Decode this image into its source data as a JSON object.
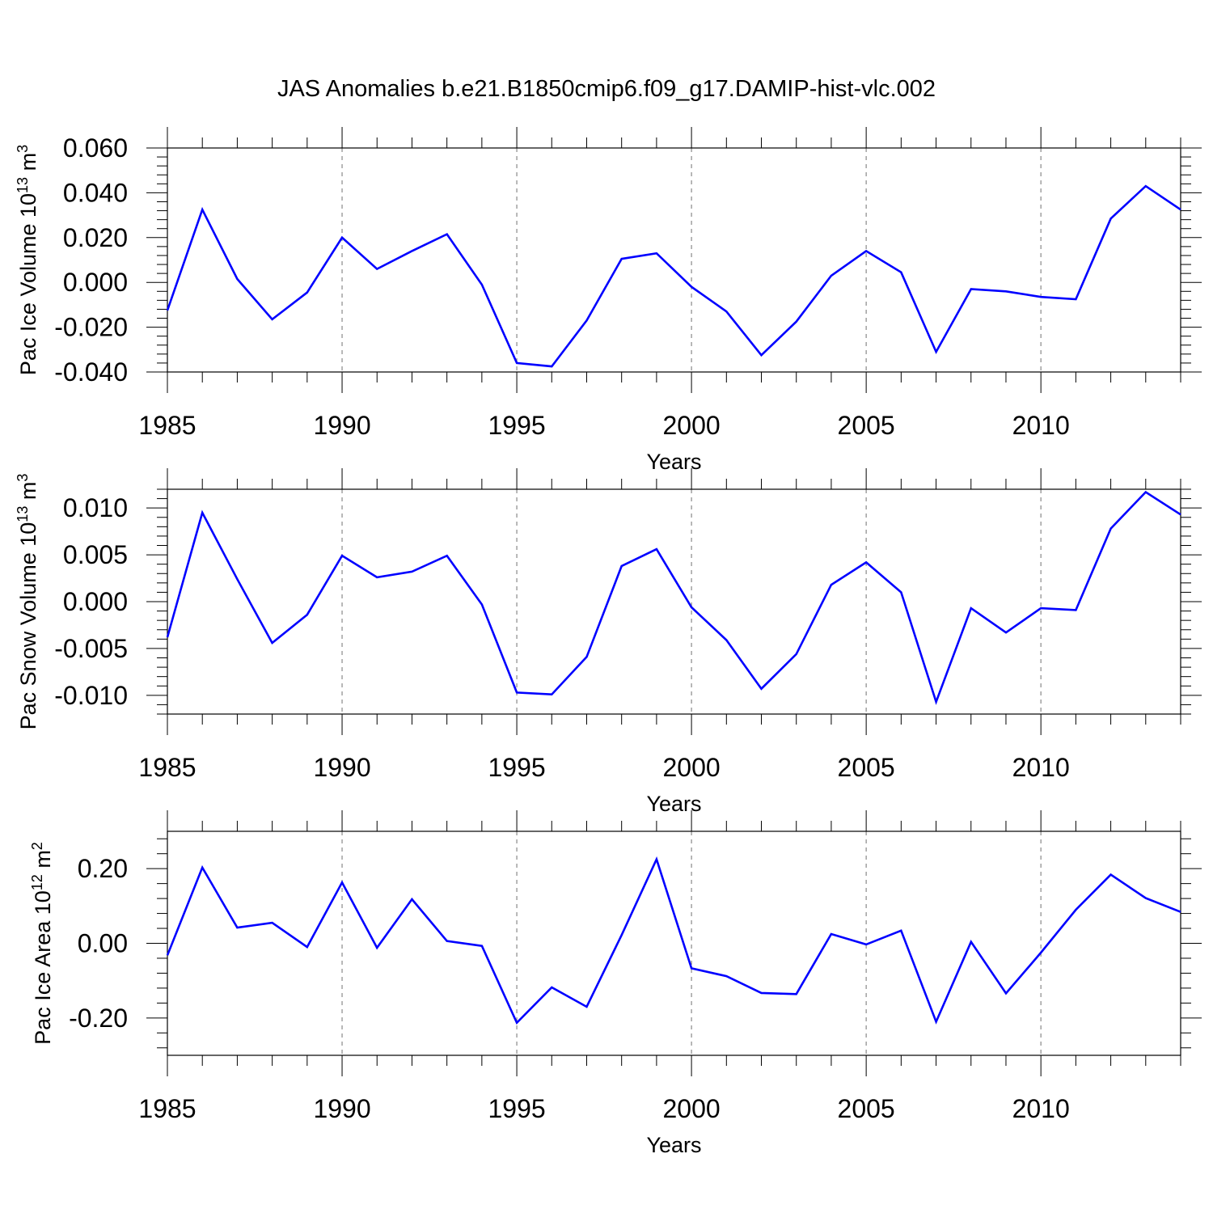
{
  "figure": {
    "title": "JAS Anomalies b.e21.B1850cmip6.f09_g17.DAMIP-hist-vlc.002"
  },
  "colors": {
    "series": "#0000ff",
    "axis": "#000000",
    "grid": "#8a8a8a"
  },
  "chart_data": [
    {
      "type": "line",
      "title": "JAS Anomalies b.e21.B1850cmip6.f09_g17.DAMIP-hist-vlc.002",
      "ylabel_main": "Pac Ice Volume 10",
      "ylabel_exp": "13",
      "ylabel_unit": " m",
      "ylabel_unit_exp": "3",
      "xlabel": "Years",
      "xlim": [
        1985,
        2014
      ],
      "ylim": [
        -0.04,
        0.06
      ],
      "yticks": [
        -0.04,
        -0.02,
        0.0,
        0.02,
        0.04,
        0.06
      ],
      "ytick_labels": [
        "-0.040",
        "-0.020",
        "0.000",
        "0.020",
        "0.040",
        "0.060"
      ],
      "xticks": [
        1985,
        1990,
        1995,
        2000,
        2005,
        2010
      ],
      "xtick_labels": [
        "1985",
        "1990",
        "1995",
        "2000",
        "2005",
        "2010"
      ],
      "grid": "vertical dashed at major x ticks",
      "x": [
        1985,
        1986,
        1987,
        1988,
        1989,
        1990,
        1991,
        1992,
        1993,
        1994,
        1995,
        1996,
        1997,
        1998,
        1999,
        2000,
        2001,
        2002,
        2003,
        2004,
        2005,
        2006,
        2007,
        2008,
        2009,
        2010,
        2011,
        2012,
        2013,
        2014
      ],
      "values": [
        -0.0125,
        0.0325,
        0.0015,
        -0.0165,
        -0.0045,
        0.02,
        0.006,
        0.014,
        0.0215,
        -0.001,
        -0.036,
        -0.0375,
        -0.017,
        0.0105,
        0.013,
        -0.002,
        -0.013,
        -0.0325,
        -0.0175,
        0.003,
        0.014,
        0.0045,
        -0.031,
        -0.003,
        -0.004,
        -0.0065,
        -0.0075,
        0.0285,
        0.043,
        0.0325
      ]
    },
    {
      "type": "line",
      "ylabel_main": "Pac Snow Volume 10",
      "ylabel_exp": "13",
      "ylabel_unit": " m",
      "ylabel_unit_exp": "3",
      "xlabel": "Years",
      "xlim": [
        1985,
        2014
      ],
      "ylim": [
        -0.012,
        0.012
      ],
      "yticks": [
        -0.01,
        -0.005,
        0.0,
        0.005,
        0.01
      ],
      "ytick_labels": [
        "-0.010",
        "-0.005",
        "0.000",
        "0.005",
        "0.010"
      ],
      "xticks": [
        1985,
        1990,
        1995,
        2000,
        2005,
        2010
      ],
      "xtick_labels": [
        "1985",
        "1990",
        "1995",
        "2000",
        "2005",
        "2010"
      ],
      "grid": "vertical dashed at major x ticks",
      "x": [
        1985,
        1986,
        1987,
        1988,
        1989,
        1990,
        1991,
        1992,
        1993,
        1994,
        1995,
        1996,
        1997,
        1998,
        1999,
        2000,
        2001,
        2002,
        2003,
        2004,
        2005,
        2006,
        2007,
        2008,
        2009,
        2010,
        2011,
        2012,
        2013,
        2014
      ],
      "values": [
        -0.0038,
        0.0095,
        0.0024,
        -0.0044,
        -0.0014,
        0.0049,
        0.0026,
        0.0032,
        0.0049,
        -0.0003,
        -0.0097,
        -0.0099,
        -0.0059,
        0.0038,
        0.0056,
        -0.0006,
        -0.0041,
        -0.0093,
        -0.0056,
        0.0018,
        0.0042,
        0.001,
        -0.0107,
        -0.0007,
        -0.0033,
        -0.0007,
        -0.0009,
        0.0078,
        0.0117,
        0.0093
      ]
    },
    {
      "type": "line",
      "ylabel_main": "Pac Ice Area 10",
      "ylabel_exp": "12",
      "ylabel_unit": " m",
      "ylabel_unit_exp": "2",
      "xlabel": "Years",
      "xlim": [
        1985,
        2014
      ],
      "ylim": [
        -0.3,
        0.3
      ],
      "yticks": [
        -0.2,
        0.0,
        0.2
      ],
      "ytick_labels": [
        "-0.20",
        "0.00",
        "0.20"
      ],
      "xticks": [
        1985,
        1990,
        1995,
        2000,
        2005,
        2010
      ],
      "xtick_labels": [
        "1985",
        "1990",
        "1995",
        "2000",
        "2005",
        "2010"
      ],
      "grid": "vertical dashed at major x ticks",
      "x": [
        1985,
        1986,
        1987,
        1988,
        1989,
        1990,
        1991,
        1992,
        1993,
        1994,
        1995,
        1996,
        1997,
        1998,
        1999,
        2000,
        2001,
        2002,
        2003,
        2004,
        2005,
        2006,
        2007,
        2008,
        2009,
        2010,
        2011,
        2012,
        2013,
        2014
      ],
      "values": [
        -0.032,
        0.203,
        0.042,
        0.055,
        -0.01,
        0.163,
        -0.012,
        0.118,
        0.006,
        -0.007,
        -0.213,
        -0.118,
        -0.17,
        0.022,
        0.225,
        -0.067,
        -0.088,
        -0.133,
        -0.136,
        0.025,
        -0.003,
        0.034,
        -0.21,
        0.004,
        -0.134,
        -0.025,
        0.09,
        0.184,
        0.121,
        0.084
      ]
    }
  ]
}
